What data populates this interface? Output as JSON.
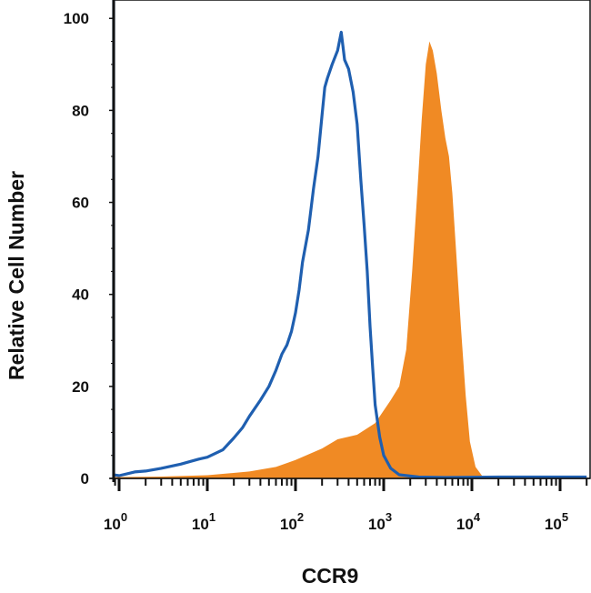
{
  "chart_data": {
    "type": "area",
    "title": "",
    "xlabel": "CCR9",
    "ylabel": "Relative Cell Number",
    "x_scale": "log",
    "xlim": [
      0.5,
      200000
    ],
    "ylim": [
      0,
      104
    ],
    "x_ticks": [
      {
        "base": "10",
        "exp": "0",
        "value": 1
      },
      {
        "base": "10",
        "exp": "1",
        "value": 10
      },
      {
        "base": "10",
        "exp": "2",
        "value": 100
      },
      {
        "base": "10",
        "exp": "3",
        "value": 1000
      },
      {
        "base": "10",
        "exp": "4",
        "value": 10000
      },
      {
        "base": "10",
        "exp": "5",
        "value": 100000
      }
    ],
    "y_ticks": [
      "0",
      "20",
      "40",
      "60",
      "80",
      "100"
    ],
    "grid": false,
    "legend": "none",
    "series": [
      {
        "style": "filled",
        "color": "#f08a24",
        "points": [
          [
            0.5,
            104
          ],
          [
            0.52,
            30
          ],
          [
            0.55,
            6
          ],
          [
            0.6,
            1
          ],
          [
            0.7,
            0.3
          ],
          [
            1,
            0.3
          ],
          [
            3,
            0.4
          ],
          [
            10,
            0.7
          ],
          [
            30,
            1.5
          ],
          [
            60,
            2.5
          ],
          [
            100,
            4
          ],
          [
            200,
            6.5
          ],
          [
            300,
            8.5
          ],
          [
            500,
            9.5
          ],
          [
            800,
            12
          ],
          [
            1200,
            17
          ],
          [
            1500,
            20
          ],
          [
            1800,
            28
          ],
          [
            2100,
            45
          ],
          [
            2400,
            62
          ],
          [
            2700,
            78
          ],
          [
            3000,
            90
          ],
          [
            3300,
            95
          ],
          [
            3600,
            93
          ],
          [
            4000,
            88
          ],
          [
            4500,
            80
          ],
          [
            5000,
            74
          ],
          [
            5500,
            70
          ],
          [
            6000,
            62
          ],
          [
            6700,
            48
          ],
          [
            7500,
            33
          ],
          [
            8500,
            18
          ],
          [
            9500,
            8
          ],
          [
            11000,
            2.5
          ],
          [
            13000,
            0.6
          ],
          [
            16000,
            0.3
          ],
          [
            30000,
            0.3
          ],
          [
            200000,
            0.3
          ]
        ]
      },
      {
        "style": "line",
        "color": "#1f5fb0",
        "points": [
          [
            0.5,
            104
          ],
          [
            0.52,
            20
          ],
          [
            0.55,
            3
          ],
          [
            0.6,
            0
          ],
          [
            0.8,
            0.8
          ],
          [
            1,
            0.6
          ],
          [
            1.5,
            1.4
          ],
          [
            2,
            1.6
          ],
          [
            3,
            2.2
          ],
          [
            5,
            3.1
          ],
          [
            8,
            4.2
          ],
          [
            10,
            4.6
          ],
          [
            15,
            6.2
          ],
          [
            20,
            8.8
          ],
          [
            25,
            11
          ],
          [
            30,
            13.5
          ],
          [
            40,
            17
          ],
          [
            50,
            20
          ],
          [
            60,
            23.5
          ],
          [
            70,
            27
          ],
          [
            80,
            29
          ],
          [
            90,
            32
          ],
          [
            100,
            36
          ],
          [
            110,
            41
          ],
          [
            120,
            47
          ],
          [
            140,
            54
          ],
          [
            160,
            63
          ],
          [
            180,
            70
          ],
          [
            200,
            79
          ],
          [
            215,
            85
          ],
          [
            230,
            87
          ],
          [
            260,
            90
          ],
          [
            300,
            93
          ],
          [
            330,
            97
          ],
          [
            360,
            91
          ],
          [
            400,
            89
          ],
          [
            450,
            84
          ],
          [
            500,
            77
          ],
          [
            550,
            65
          ],
          [
            600,
            55
          ],
          [
            650,
            45
          ],
          [
            700,
            33
          ],
          [
            750,
            24
          ],
          [
            800,
            16
          ],
          [
            900,
            9
          ],
          [
            1000,
            5
          ],
          [
            1200,
            2.2
          ],
          [
            1500,
            0.8
          ],
          [
            2500,
            0.3
          ],
          [
            5000,
            0.2
          ],
          [
            20000,
            0.3
          ],
          [
            200000,
            0.3
          ]
        ]
      }
    ]
  }
}
